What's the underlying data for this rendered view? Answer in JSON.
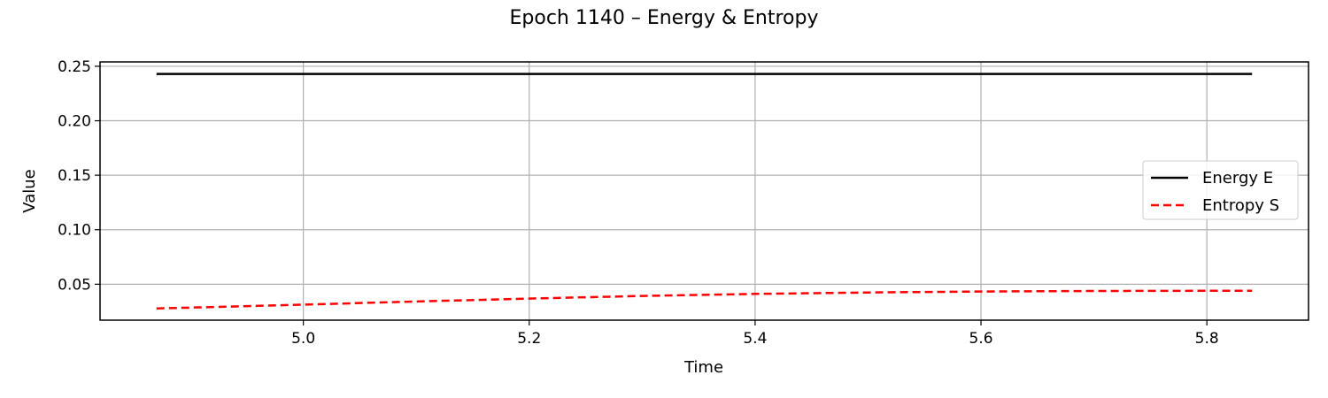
{
  "chart_data": {
    "type": "line",
    "title": "Epoch 1140 – Energy & Entropy",
    "xlabel": "Time",
    "ylabel": "Value",
    "xlim": [
      4.82,
      5.89
    ],
    "ylim": [
      0.017,
      0.254
    ],
    "xticks": [
      5.0,
      5.2,
      5.4,
      5.6,
      5.8
    ],
    "xtick_labels": [
      "5.0",
      "5.2",
      "5.4",
      "5.6",
      "5.8"
    ],
    "yticks": [
      0.05,
      0.1,
      0.15,
      0.2,
      0.25
    ],
    "ytick_labels": [
      "0.05",
      "0.10",
      "0.15",
      "0.20",
      "0.25"
    ],
    "grid": true,
    "legend_position": "center-right",
    "series": [
      {
        "name": "Energy E",
        "color": "#000000",
        "style": "solid",
        "x": [
          4.87,
          5.0,
          5.2,
          5.4,
          5.6,
          5.84
        ],
        "y": [
          0.243,
          0.243,
          0.243,
          0.243,
          0.243,
          0.243
        ]
      },
      {
        "name": "Entropy S",
        "color": "#ff0000",
        "style": "dashed",
        "x": [
          4.87,
          5.0,
          5.1,
          5.2,
          5.3,
          5.4,
          5.5,
          5.6,
          5.7,
          5.84
        ],
        "y": [
          0.0277,
          0.0313,
          0.0341,
          0.0368,
          0.0392,
          0.0411,
          0.0424,
          0.0433,
          0.0438,
          0.044
        ]
      }
    ]
  }
}
